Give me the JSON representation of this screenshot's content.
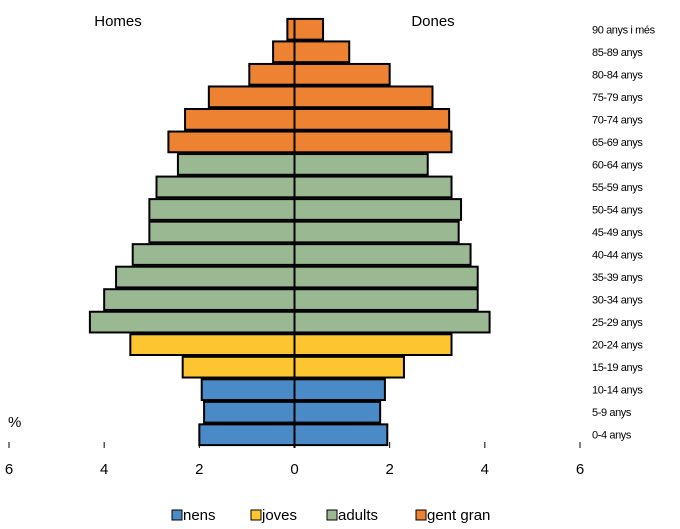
{
  "chart_data": {
    "type": "bar",
    "subtype": "population-pyramid",
    "left_label": "Homes",
    "right_label": "Dones",
    "unit_label": "%",
    "xlim": [
      -6,
      6
    ],
    "x_ticks": [
      -6,
      -4,
      -2,
      0,
      2,
      4,
      6
    ],
    "x_tick_labels": [
      "6",
      "4",
      "2",
      "0",
      "2",
      "4",
      "6"
    ],
    "grid": false,
    "legend_position": "bottom",
    "categories": [
      "0-4 anys",
      "5-9 anys",
      "10-14 anys",
      "15-19 anys",
      "20-24 anys",
      "25-29 anys",
      "30-34 anys",
      "35-39 anys",
      "40-44 anys",
      "45-49 anys",
      "50-54 anys",
      "55-59 anys",
      "60-64 anys",
      "65-69 anys",
      "70-74 anys",
      "75-79 anys",
      "80-84 anys",
      "85-89 anys",
      "90 anys i més"
    ],
    "age_group_index": [
      0,
      0,
      0,
      1,
      1,
      2,
      2,
      2,
      2,
      2,
      2,
      2,
      2,
      3,
      3,
      3,
      3,
      3,
      3
    ],
    "men": [
      2.0,
      1.9,
      1.95,
      2.35,
      3.45,
      4.3,
      4.0,
      3.75,
      3.4,
      3.05,
      3.05,
      2.9,
      2.45,
      2.65,
      2.3,
      1.8,
      0.95,
      0.45,
      0.15
    ],
    "women": [
      1.95,
      1.8,
      1.9,
      2.3,
      3.3,
      4.1,
      3.85,
      3.85,
      3.7,
      3.45,
      3.5,
      3.3,
      2.8,
      3.3,
      3.25,
      2.9,
      2.0,
      1.15,
      0.6
    ],
    "legend": [
      {
        "name": "nens",
        "color": "#4a8ac6"
      },
      {
        "name": "joves",
        "color": "#fdc631"
      },
      {
        "name": "adults",
        "color": "#9ab892"
      },
      {
        "name": "gent gran",
        "color": "#ec8232"
      }
    ]
  }
}
